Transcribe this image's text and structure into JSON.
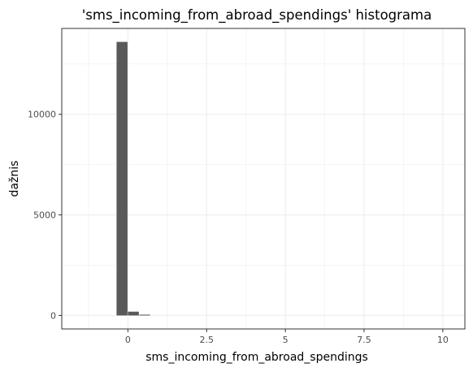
{
  "chart_data": {
    "type": "bar",
    "title": "'sms_incoming_from_abroad_spendings' histograma",
    "xlabel": "sms_incoming_from_abroad_spendings",
    "ylabel": "dažnis",
    "xlim": [
      -2.1,
      10.7
    ],
    "ylim": [
      -670,
      14270
    ],
    "x_ticks": [
      {
        "value": 0,
        "label": "0"
      },
      {
        "value": 2.5,
        "label": "2.5"
      },
      {
        "value": 5,
        "label": "5"
      },
      {
        "value": 7.5,
        "label": "7.5"
      },
      {
        "value": 10,
        "label": "10"
      }
    ],
    "y_ticks": [
      {
        "value": 0,
        "label": "0"
      },
      {
        "value": 5000,
        "label": "5000"
      },
      {
        "value": 10000,
        "label": "10000"
      }
    ],
    "grid": true,
    "legend": "none",
    "bin_width": 0.36,
    "bins": [
      {
        "x": -0.18,
        "count": 13600
      },
      {
        "x": 0.18,
        "count": 190
      },
      {
        "x": 0.54,
        "count": 40
      }
    ],
    "colors": {
      "bar": "#595959",
      "grid": "#ebebeb",
      "panel_border": "#333333",
      "tick": "#333333"
    }
  }
}
